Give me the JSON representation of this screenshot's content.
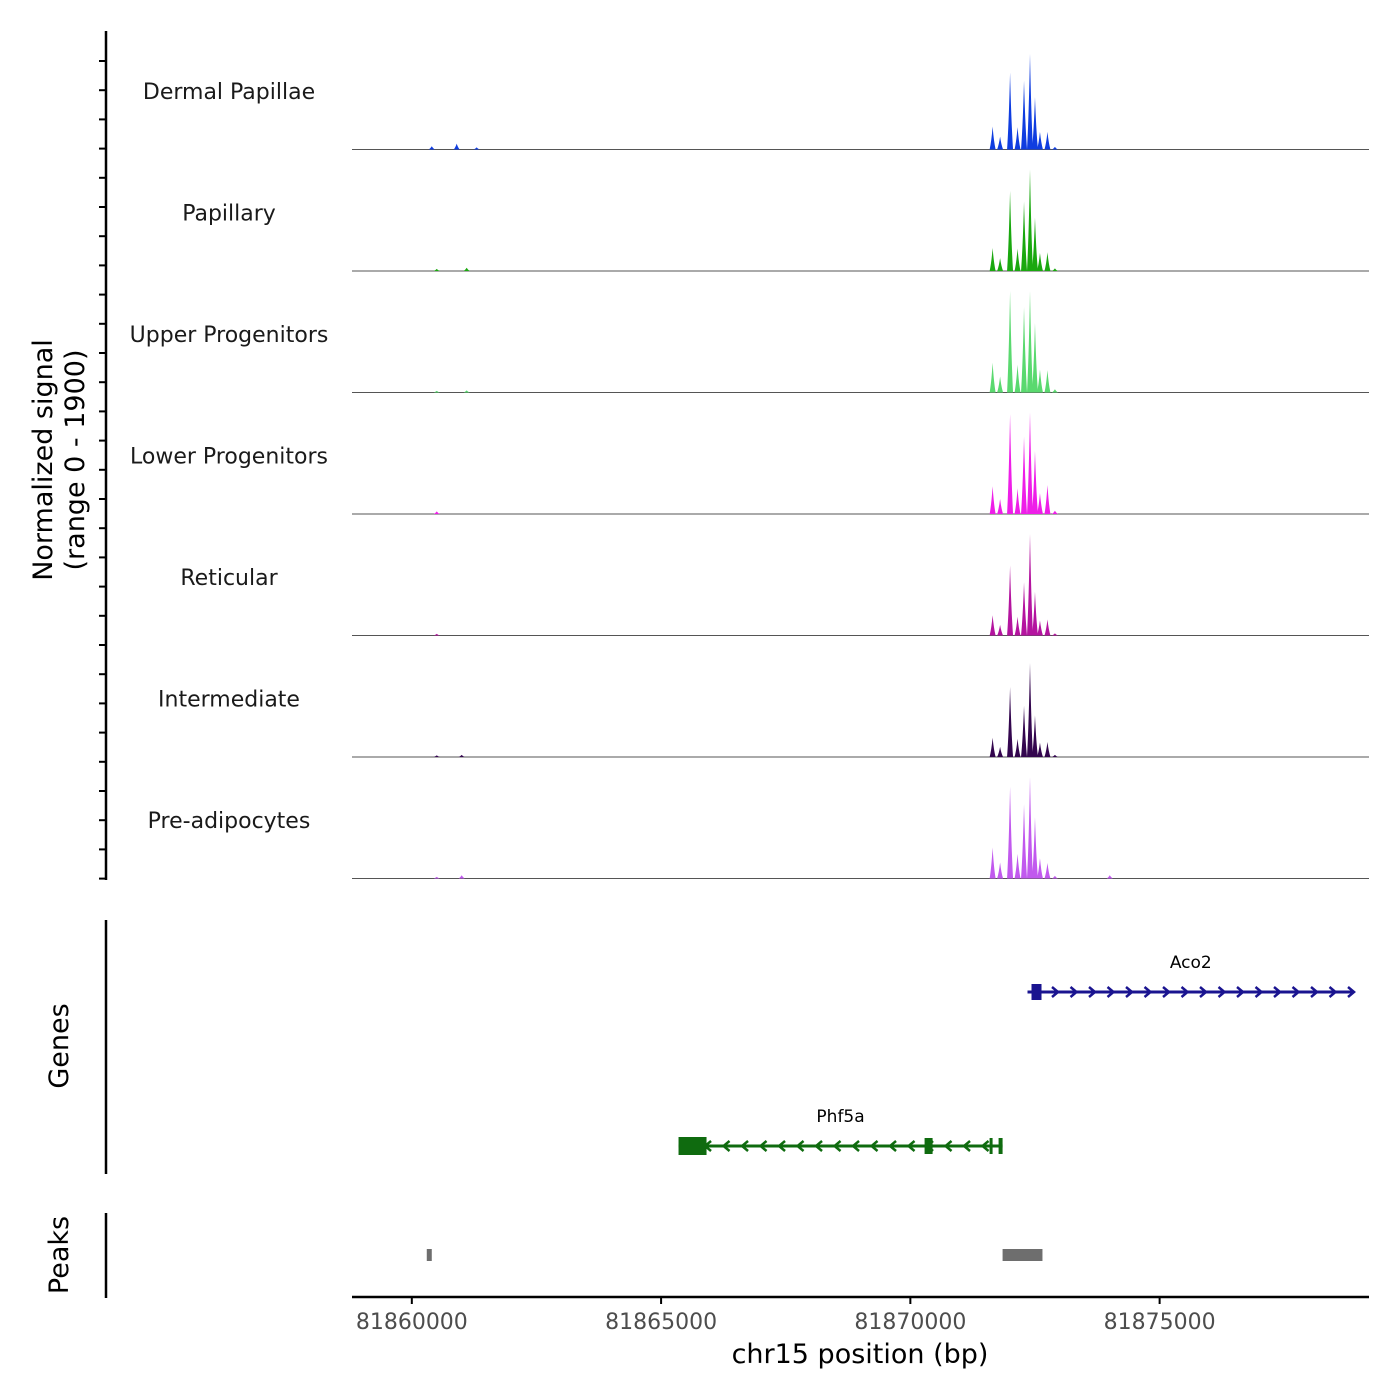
{
  "chart_data": {
    "type": "area",
    "title": "",
    "xlabel": "chr15 position (bp)",
    "ylabel": "Normalized signal\n(range 0 - 1900)",
    "xlim": [
      81858800,
      81879200
    ],
    "ylim": [
      0,
      1900
    ],
    "x_ticks": [
      81860000,
      81865000,
      81870000,
      81875000
    ],
    "x_tick_labels": [
      "81860000",
      "81865000",
      "81870000",
      "81875000"
    ],
    "series": [
      {
        "name": "Dermal Papillae",
        "color": "#0f3de0",
        "x": [
          81860400,
          81860900,
          81861300,
          81871650,
          81871800,
          81872000,
          81872150,
          81872280,
          81872400,
          81872500,
          81872600,
          81872750,
          81872900
        ],
        "values": [
          60,
          110,
          40,
          430,
          240,
          1440,
          420,
          1290,
          1790,
          980,
          330,
          330,
          50
        ]
      },
      {
        "name": "Papillary",
        "color": "#1aa80f",
        "x": [
          81860500,
          81861100,
          81871650,
          81871800,
          81872000,
          81872150,
          81872280,
          81872400,
          81872500,
          81872600,
          81872750,
          81872900
        ],
        "values": [
          40,
          60,
          430,
          240,
          1500,
          420,
          1300,
          1980,
          1000,
          340,
          350,
          50
        ]
      },
      {
        "name": "Upper Progenitors",
        "color": "#5ad96f",
        "x": [
          81860500,
          81861100,
          81871650,
          81871800,
          81872000,
          81872150,
          81872280,
          81872400,
          81872500,
          81872600,
          81872750,
          81872900
        ],
        "values": [
          30,
          40,
          560,
          300,
          2090,
          520,
          1600,
          3230,
          1300,
          430,
          420,
          60
        ]
      },
      {
        "name": "Lower Progenitors",
        "color": "#ee1ee8",
        "x": [
          81860500,
          81871650,
          81871800,
          81872000,
          81872150,
          81872280,
          81872400,
          81872500,
          81872600,
          81872750,
          81872900
        ],
        "values": [
          50,
          520,
          280,
          1870,
          480,
          1450,
          2850,
          1180,
          390,
          540,
          60
        ]
      },
      {
        "name": "Reticular",
        "color": "#b4149f",
        "x": [
          81860500,
          81871650,
          81871800,
          81872000,
          81872150,
          81872280,
          81872400,
          81872500,
          81872600,
          81872750,
          81872900
        ],
        "values": [
          30,
          380,
          200,
          1310,
          350,
          1000,
          1940,
          820,
          280,
          300,
          40
        ]
      },
      {
        "name": "Intermediate",
        "color": "#33064e",
        "x": [
          81860500,
          81861000,
          81871650,
          81871800,
          81872000,
          81872150,
          81872280,
          81872400,
          81872500,
          81872600,
          81872750,
          81872900
        ],
        "values": [
          30,
          40,
          360,
          190,
          1310,
          340,
          960,
          1760,
          780,
          270,
          280,
          40
        ]
      },
      {
        "name": "Pre-adipocytes",
        "color": "#c159ee",
        "x": [
          81860500,
          81861000,
          81871650,
          81871800,
          81872000,
          81872150,
          81872280,
          81872400,
          81872500,
          81872600,
          81872750,
          81872900,
          81874000
        ],
        "values": [
          30,
          60,
          580,
          300,
          1720,
          460,
          1390,
          2790,
          1150,
          380,
          290,
          50,
          60
        ]
      }
    ],
    "genes": [
      {
        "name": "Aco2",
        "strand": "+",
        "start": 81872350,
        "end": 81878900,
        "color": "#1a1490"
      },
      {
        "name": "Phf5a",
        "strand": "-",
        "start": 81865350,
        "end": 81871850,
        "color": "#0f6b0f"
      }
    ],
    "peaks": [
      {
        "start": 81860300,
        "end": 81860400
      },
      {
        "start": 81871850,
        "end": 81872650
      }
    ],
    "panel_labels": [
      "Genes",
      "Peaks"
    ],
    "peak_color": "#6e6e6e"
  }
}
